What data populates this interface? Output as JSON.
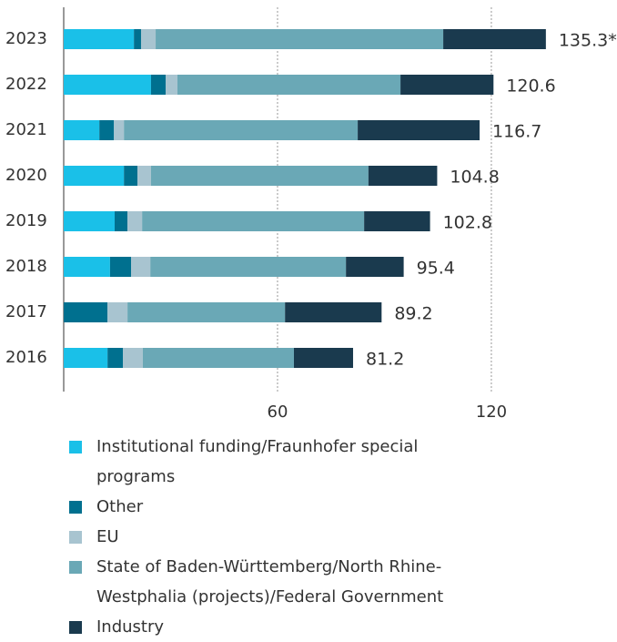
{
  "chart_data": {
    "type": "stacked-bar-horizontal",
    "categories": [
      "2023",
      "2022",
      "2021",
      "2020",
      "2019",
      "2018",
      "2017",
      "2016"
    ],
    "series": [
      {
        "name": "Institutional funding/Fraunhofer special programs",
        "color": "#1ac0e8",
        "values": [
          19.7,
          24.5,
          10.0,
          16.9,
          14.3,
          13.0,
          0,
          12.3
        ]
      },
      {
        "name": "Other",
        "color": "#00708f",
        "values": [
          2.0,
          4.1,
          4.1,
          3.8,
          3.6,
          5.9,
          12.3,
          4.3
        ]
      },
      {
        "name": "EU",
        "color": "#a8c4d0",
        "values": [
          4.1,
          3.3,
          2.8,
          3.8,
          4.1,
          5.4,
          5.6,
          5.6
        ]
      },
      {
        "name": "State of Baden-Württemberg/North Rhine-Westphalia (projects)/Federal Government",
        "color": "#6aa8b6",
        "values": [
          80.7,
          62.6,
          65.6,
          61.0,
          62.3,
          54.9,
          44.2,
          42.4
        ]
      },
      {
        "name": "Industry",
        "color": "#1a3a4e",
        "values": [
          28.8,
          26.1,
          34.2,
          19.3,
          18.5,
          16.2,
          27.1,
          16.6
        ]
      }
    ],
    "totals": [
      135.3,
      120.6,
      116.7,
      104.8,
      102.8,
      95.4,
      89.2,
      81.2
    ],
    "total_labels": [
      "135.3*",
      "120.6",
      "116.7",
      "104.8",
      "102.8",
      "95.4",
      "89.2",
      "81.2"
    ],
    "xlim": [
      0,
      155
    ],
    "xticks": [
      60,
      120
    ],
    "grid": true
  }
}
